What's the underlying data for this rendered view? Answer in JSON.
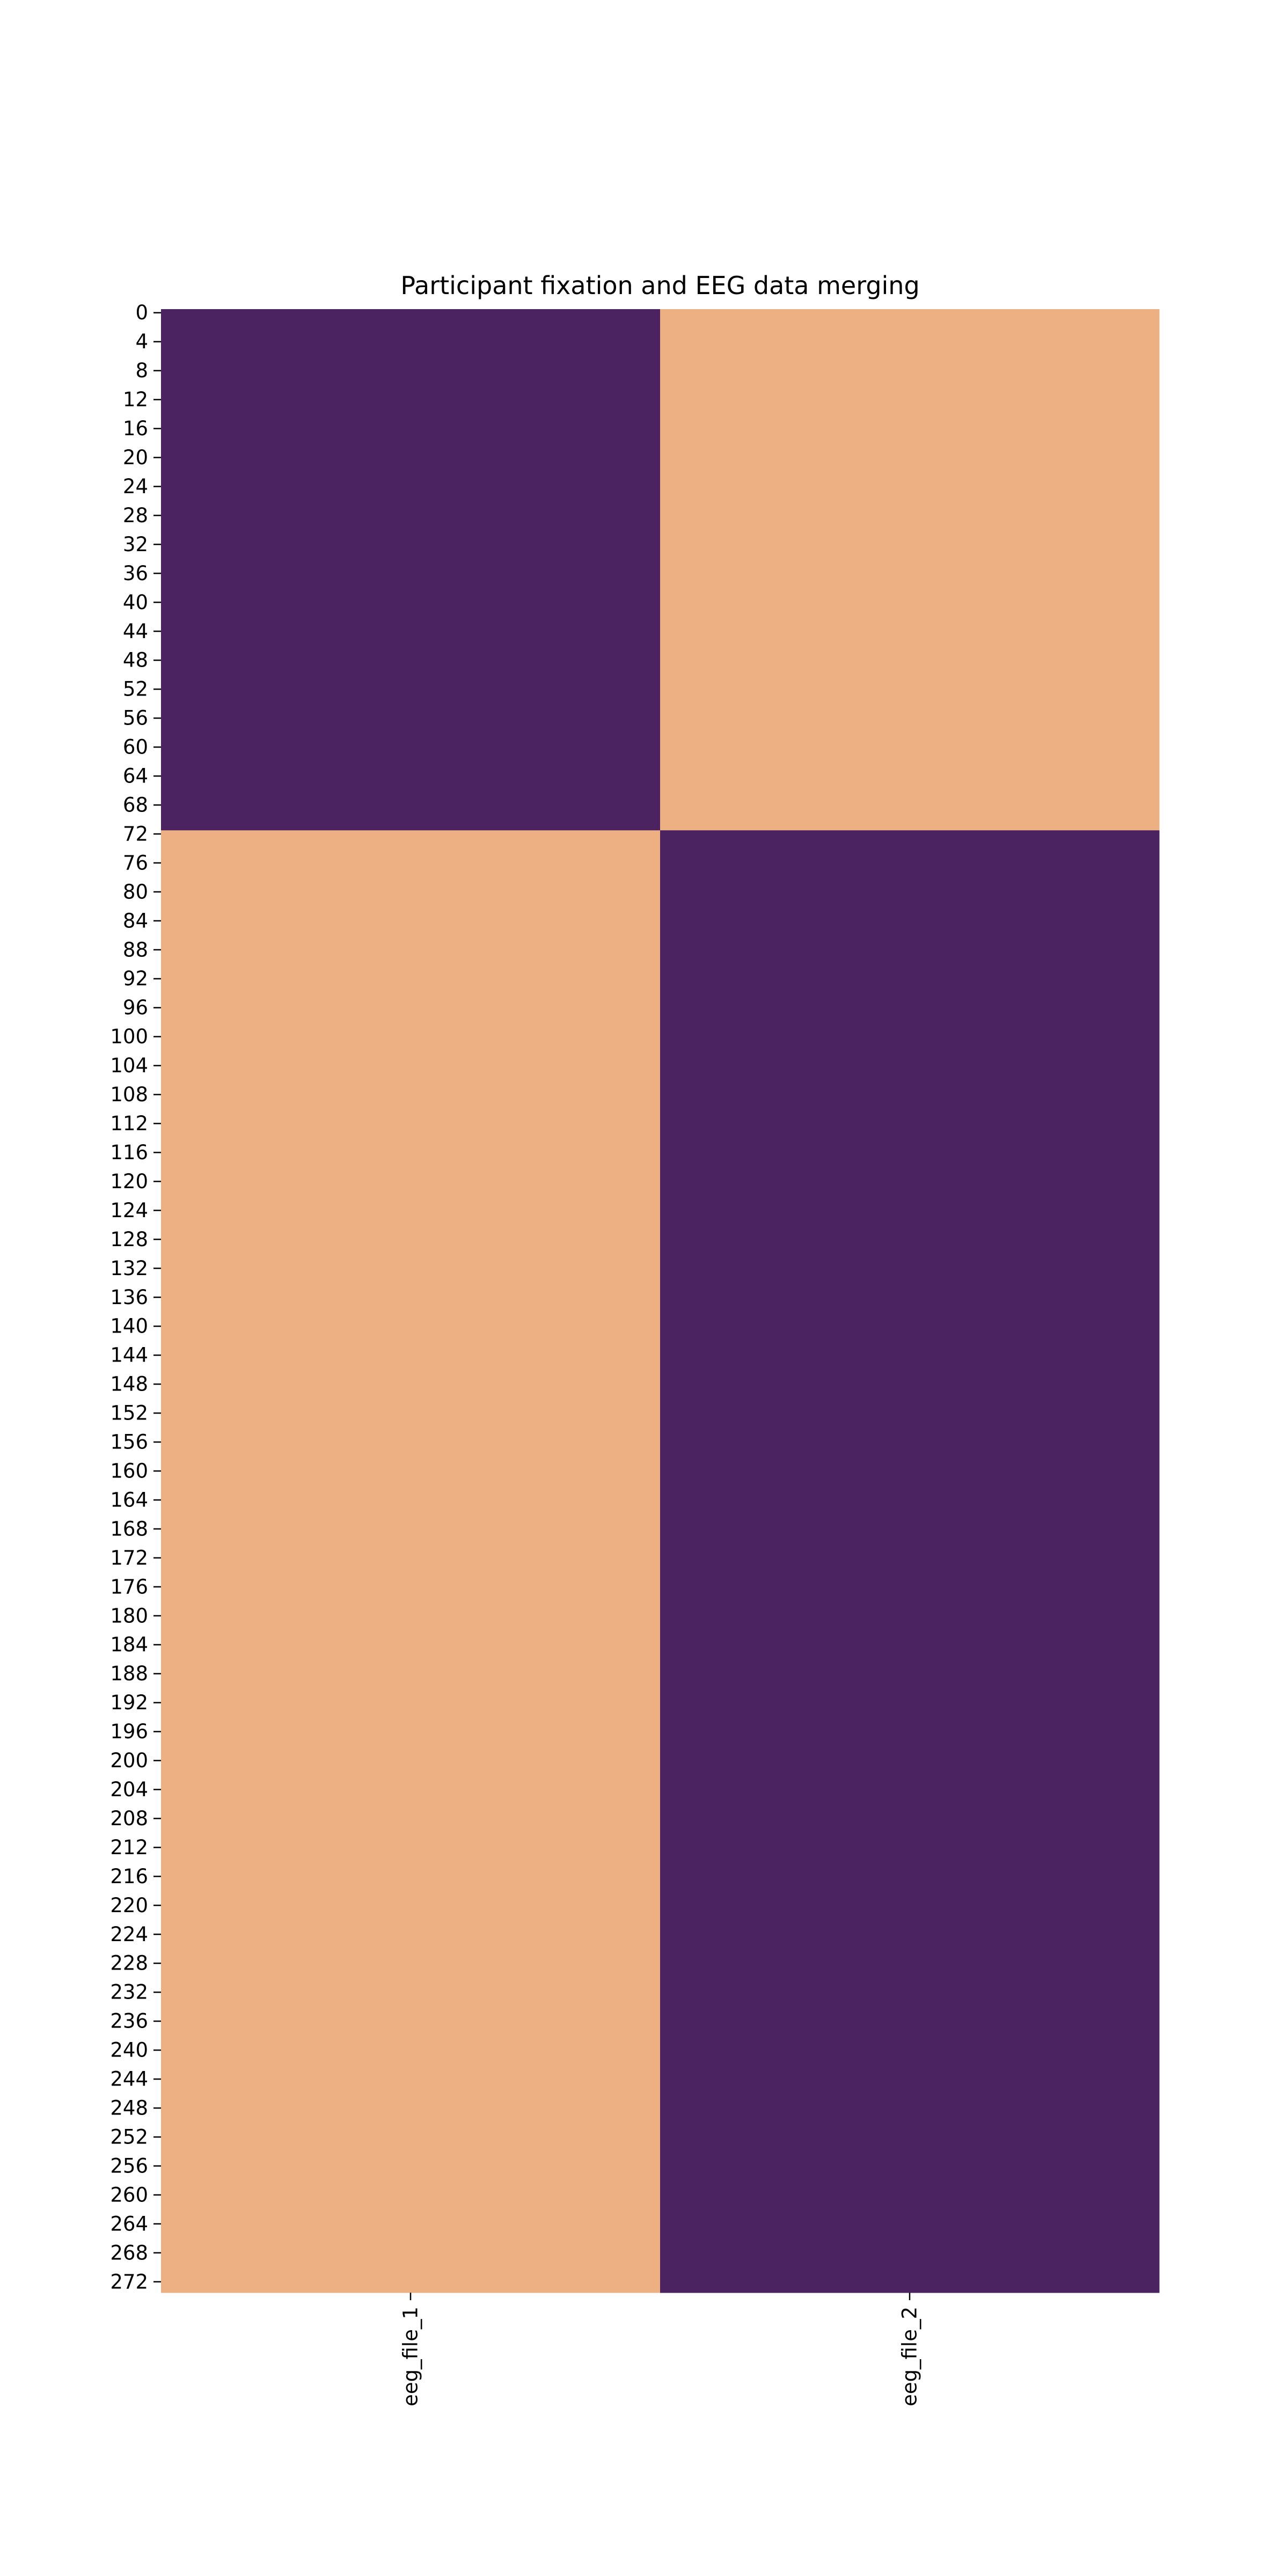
{
  "chart_data": {
    "type": "heatmap",
    "title": "Participant fixation and EEG data merging",
    "xlabel": "",
    "ylabel": "",
    "columns": [
      "eeg_file_1",
      "eeg_file_2"
    ],
    "row_count": 274,
    "y_tick_step": 4,
    "y_ticks": [
      0,
      4,
      8,
      12,
      16,
      20,
      24,
      28,
      32,
      36,
      40,
      44,
      48,
      52,
      56,
      60,
      64,
      68,
      72,
      76,
      80,
      84,
      88,
      92,
      96,
      100,
      104,
      108,
      112,
      116,
      120,
      124,
      128,
      132,
      136,
      140,
      144,
      148,
      152,
      156,
      160,
      164,
      168,
      172,
      176,
      180,
      184,
      188,
      192,
      196,
      200,
      204,
      208,
      212,
      216,
      220,
      224,
      228,
      232,
      236,
      240,
      244,
      248,
      252,
      256,
      260,
      264,
      268,
      272
    ],
    "value_blocks": [
      {
        "rows": [
          0,
          71
        ],
        "values": [
          1,
          0
        ]
      },
      {
        "rows": [
          72,
          273
        ],
        "values": [
          0,
          1
        ]
      }
    ],
    "colormap": {
      "1": "#4b2361",
      "0": "#edb082"
    },
    "colorbar": false,
    "grid": false
  }
}
